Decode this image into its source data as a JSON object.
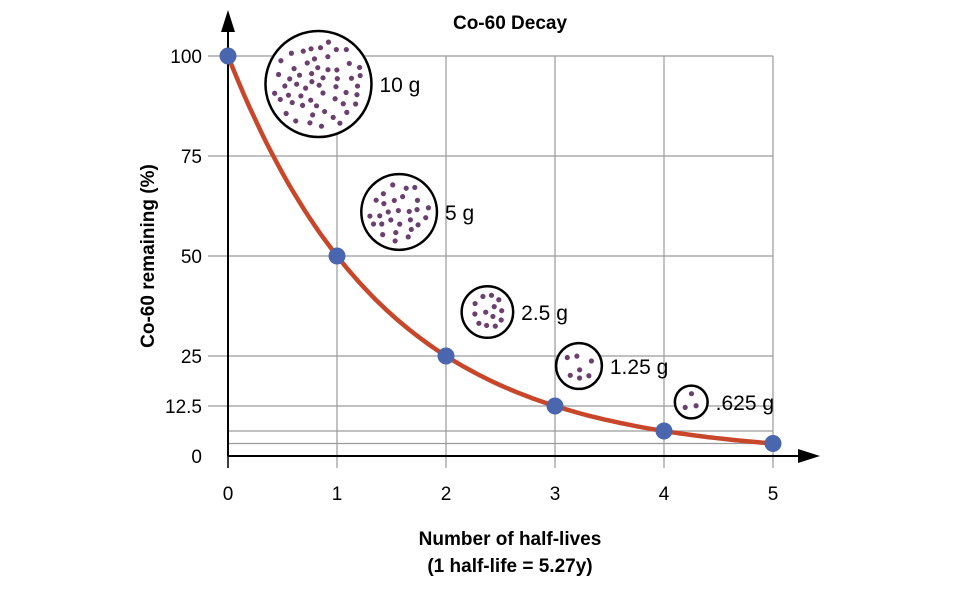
{
  "chart_data": {
    "type": "line",
    "title": "Co-60 Decay",
    "xlabel": "Number of half-lives",
    "xlabel_sub": "(1 half-life = 5.27y)",
    "ylabel": "Co-60 remaining (%)",
    "x": [
      0,
      1,
      2,
      3,
      4,
      5
    ],
    "y": [
      100,
      50,
      25,
      12.5,
      6.25,
      3.125
    ],
    "xlim": [
      0,
      5
    ],
    "ylim": [
      0,
      100
    ],
    "x_ticks": [
      "0",
      "1",
      "2",
      "3",
      "4",
      "5"
    ],
    "y_ticks": [
      {
        "value": 100,
        "label": "100"
      },
      {
        "value": 75,
        "label": "75"
      },
      {
        "value": 50,
        "label": "50"
      },
      {
        "value": 25,
        "label": "25"
      },
      {
        "value": 12.5,
        "label": "12.5"
      },
      {
        "value": 0,
        "label": "0"
      }
    ],
    "extra_gridlines_y": [
      6.25,
      3.125
    ],
    "grid": true,
    "curve_color": "#c8472a",
    "point_color": "#4a66ae",
    "sample_color": "#6b3f6e",
    "samples": [
      {
        "label": "10 g",
        "at_x": 0.83,
        "at_y": 93,
        "dots": 55
      },
      {
        "label": "5 g",
        "at_x": 1.57,
        "at_y": 61,
        "dots": 28
      },
      {
        "label": "2.5 g",
        "at_x": 2.38,
        "at_y": 36,
        "dots": 13
      },
      {
        "label": "1.25 g",
        "at_x": 3.22,
        "at_y": 22.5,
        "dots": 7
      },
      {
        "label": ".625 g",
        "at_x": 4.25,
        "at_y": 13.5,
        "dots": 3
      }
    ]
  }
}
